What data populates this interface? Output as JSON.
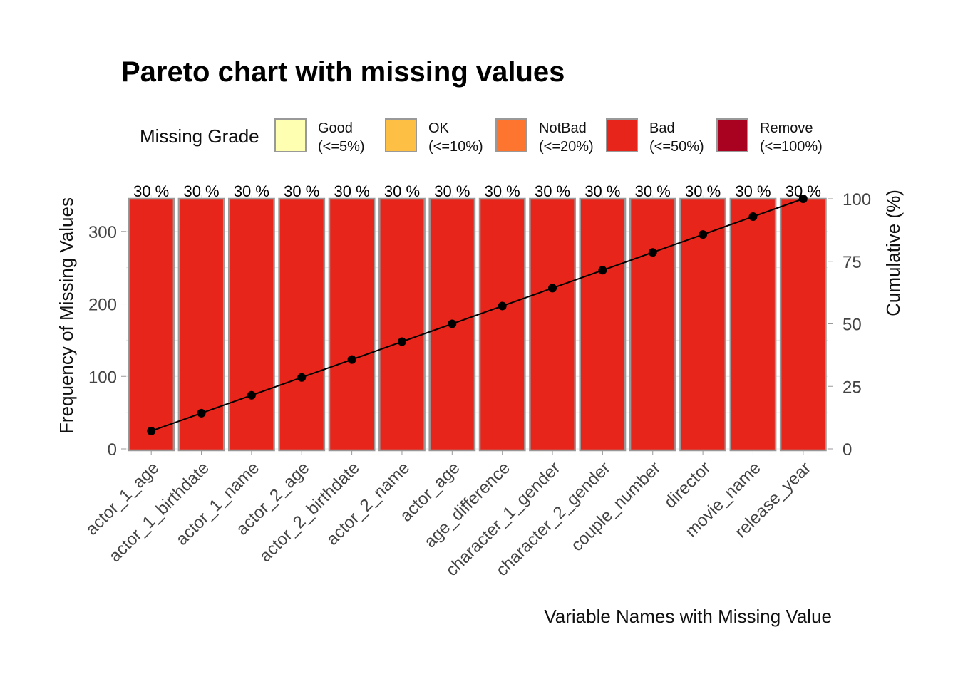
{
  "chart_data": {
    "type": "bar",
    "title": "Pareto chart with missing values",
    "xlabel": "Variable Names with Missing Value",
    "ylabel": "Frequency of Missing Values",
    "y2label": "Cumulative (%)",
    "categories": [
      "actor_1_age",
      "actor_1_birthdate",
      "actor_1_name",
      "actor_2_age",
      "actor_2_birthdate",
      "actor_2_name",
      "actor_age",
      "age_difference",
      "character_1_gender",
      "character_2_gender",
      "couple_number",
      "director",
      "movie_name",
      "release_year"
    ],
    "values": [
      345,
      345,
      345,
      345,
      345,
      345,
      345,
      345,
      345,
      345,
      345,
      345,
      345,
      345
    ],
    "bar_labels": [
      "30 %",
      "30 %",
      "30 %",
      "30 %",
      "30 %",
      "30 %",
      "30 %",
      "30 %",
      "30 %",
      "30 %",
      "30 %",
      "30 %",
      "30 %",
      "30 %"
    ],
    "cumulative": [
      7.14,
      14.29,
      21.43,
      28.57,
      35.71,
      42.86,
      50.0,
      57.14,
      64.29,
      71.43,
      78.57,
      85.71,
      92.86,
      100.0
    ],
    "ylim": [
      0,
      345
    ],
    "yticks": [
      0,
      100,
      200,
      300
    ],
    "y2lim": [
      0,
      100
    ],
    "y2ticks": [
      0,
      25,
      50,
      75,
      100
    ],
    "bar_color": "#E8251A",
    "bar_border": "#999999",
    "line_color": "#000000",
    "legend": {
      "title": "Missing Grade",
      "placement": "top",
      "items": [
        {
          "name": "Good",
          "range": "(<=5%)",
          "color": "#FFFFB2"
        },
        {
          "name": "OK",
          "range": "(<=10%)",
          "color": "#FEC044"
        },
        {
          "name": "NotBad",
          "range": "(<=20%)",
          "color": "#FD752E"
        },
        {
          "name": "Bad",
          "range": "(<=50%)",
          "color": "#E8251A"
        },
        {
          "name": "Remove",
          "range": "(<=100%)",
          "color": "#A90120"
        }
      ]
    },
    "grid": true
  }
}
